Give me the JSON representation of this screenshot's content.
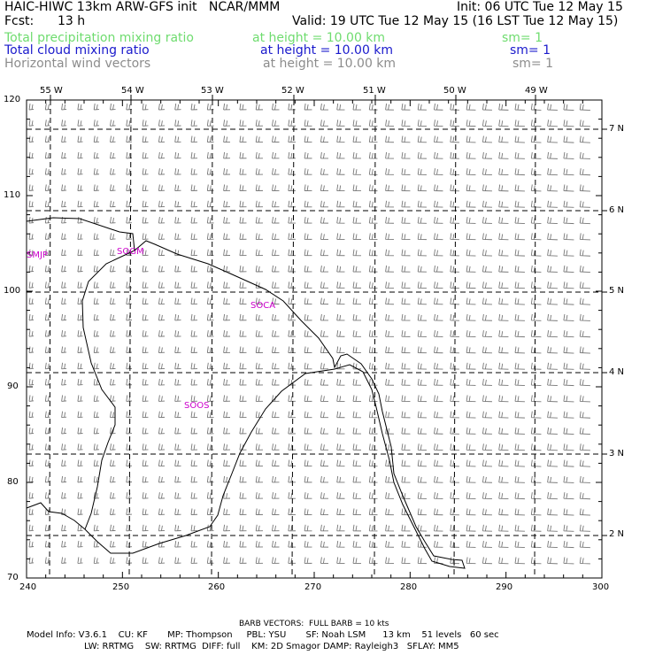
{
  "header": {
    "title": "HAIC-HIWC 13km ARW-GFS init   NCAR/MMM",
    "init": "Init: 06 UTC Tue 12 May 15",
    "fcst_label": "Fcst:",
    "fcst_value": "13 h",
    "valid": "Valid: 19 UTC Tue 12 May 15 (16 LST Tue 12 May 15)"
  },
  "fields": [
    {
      "name": "Total precipitation mixing ratio",
      "height": "at height = 10.00 km",
      "sm": "sm= 1",
      "color": "#6fdc6f"
    },
    {
      "name": "Total cloud mixing ratio",
      "height": "at height = 10.00 km",
      "sm": "sm= 1",
      "color": "#1a1acc"
    },
    {
      "name": "Horizontal wind vectors",
      "height": "at height = 10.00 km",
      "sm": "sm= 1",
      "color": "#8c8c8c"
    }
  ],
  "map": {
    "frame_color": "#000000",
    "barb_color": "#777777",
    "station_color": "#cc00cc",
    "lon_labels": [
      "55 W",
      "54 W",
      "53 W",
      "52 W",
      "51 W",
      "50 W",
      "49 W"
    ],
    "lat_labels": [
      "7 N",
      "6 N",
      "5 N",
      "4 N",
      "3 N",
      "2 N"
    ],
    "x_ticks": [
      "240",
      "250",
      "260",
      "270",
      "280",
      "290",
      "300"
    ],
    "y_ticks": [
      "120",
      "110",
      "100",
      "90",
      "80",
      "70"
    ],
    "stations": [
      "SMJP",
      "SOGM",
      "SOCA",
      "SOOS"
    ]
  },
  "footer": {
    "barb_note": "BARB VECTORS:  FULL BARB = 10 kts",
    "line1": "Model Info: V3.6.1    CU: KF       MP: Thompson     PBL: YSU       SF: Noah LSM      13 km    51 levels   60 sec",
    "line2": "LW: RRTMG    SW: RRTMG  DIFF: full    KM: 2D Smagor DAMP: Rayleigh3   SFLAY: MM5"
  }
}
